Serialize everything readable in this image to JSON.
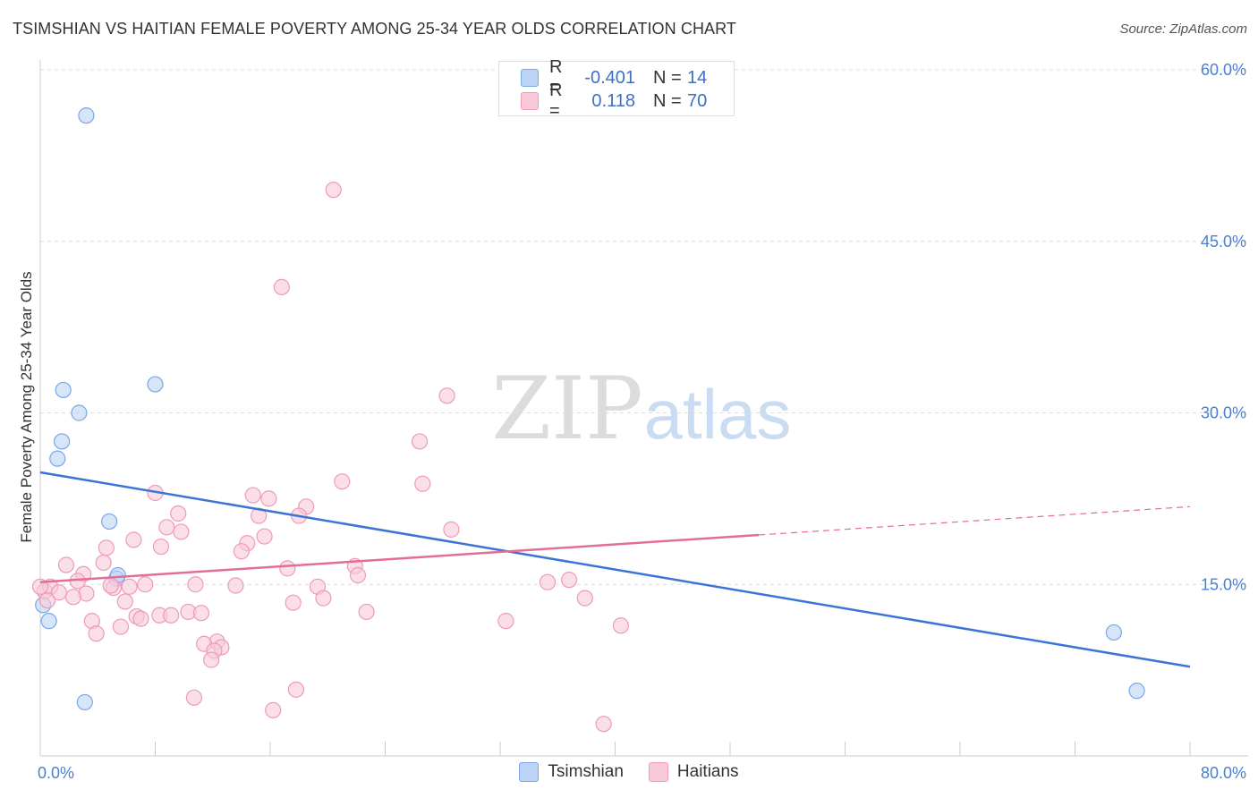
{
  "title": "TSIMSHIAN VS HAITIAN FEMALE POVERTY AMONG 25-34 YEAR OLDS CORRELATION CHART",
  "source": "Source: ZipAtlas.com",
  "watermark": {
    "zip": "ZIP",
    "atlas": "atlas"
  },
  "legend": {
    "rows": [
      {
        "r_label": "R =",
        "r_value": "-0.401",
        "n_label": "N =",
        "n_value": "14",
        "color": "#7aa6e8",
        "fill": "#bcd3f5"
      },
      {
        "r_label": "R =",
        "r_value": "0.118",
        "n_label": "N =",
        "n_value": "70",
        "color": "#ee9ab8",
        "fill": "#f9c9d9"
      }
    ]
  },
  "bottom_legend": [
    {
      "label": "Tsimshian",
      "color": "#7aa6e8",
      "fill": "#bcd3f5"
    },
    {
      "label": "Haitians",
      "color": "#ee9ab8",
      "fill": "#f9c9d9"
    }
  ],
  "chart_data": {
    "type": "scatter",
    "ylabel": "Female Poverty Among 25-34 Year Olds",
    "xlim": [
      0,
      80
    ],
    "ylim": [
      0,
      60
    ],
    "x_tick_labels": [
      {
        "value": 0,
        "label": "0.0%"
      },
      {
        "value": 80,
        "label": "80.0%"
      }
    ],
    "y_tick_labels": [
      {
        "value": 15,
        "label": "15.0%"
      },
      {
        "value": 30,
        "label": "30.0%"
      },
      {
        "value": 45,
        "label": "45.0%"
      },
      {
        "value": 60,
        "label": "60.0%"
      }
    ],
    "grid": true,
    "series": [
      {
        "name": "Tsimshian",
        "color": "#3a74d6",
        "marker_fill": "#bcd3f5",
        "marker_stroke": "#7aa6e8",
        "points": [
          [
            3.2,
            56.0
          ],
          [
            1.6,
            32.0
          ],
          [
            2.7,
            30.0
          ],
          [
            8.0,
            32.5
          ],
          [
            1.5,
            27.5
          ],
          [
            1.2,
            26.0
          ],
          [
            4.8,
            20.5
          ],
          [
            5.3,
            15.5
          ],
          [
            5.4,
            15.8
          ],
          [
            0.6,
            11.8
          ],
          [
            0.2,
            13.2
          ],
          [
            3.1,
            4.7
          ],
          [
            74.7,
            10.8
          ],
          [
            76.3,
            5.7
          ]
        ],
        "trend": {
          "x": [
            0,
            80
          ],
          "y": [
            24.8,
            7.8
          ],
          "dashed_from": null
        }
      },
      {
        "name": "Haitians",
        "color": "#e46d95",
        "marker_fill": "#f9c9d9",
        "marker_stroke": "#ee9ab8",
        "points": [
          [
            20.4,
            49.5
          ],
          [
            16.8,
            41.0
          ],
          [
            28.3,
            31.5
          ],
          [
            26.4,
            27.5
          ],
          [
            21.0,
            24.0
          ],
          [
            26.6,
            23.8
          ],
          [
            8.0,
            23.0
          ],
          [
            14.8,
            22.8
          ],
          [
            15.9,
            22.5
          ],
          [
            18.5,
            21.8
          ],
          [
            9.6,
            21.2
          ],
          [
            18.0,
            21.0
          ],
          [
            15.2,
            21.0
          ],
          [
            8.8,
            20.0
          ],
          [
            28.6,
            19.8
          ],
          [
            9.8,
            19.6
          ],
          [
            15.6,
            19.2
          ],
          [
            6.5,
            18.9
          ],
          [
            14.4,
            18.6
          ],
          [
            8.4,
            18.3
          ],
          [
            4.6,
            18.2
          ],
          [
            14.0,
            17.9
          ],
          [
            4.4,
            16.9
          ],
          [
            1.8,
            16.7
          ],
          [
            21.9,
            16.6
          ],
          [
            17.2,
            16.4
          ],
          [
            22.1,
            15.8
          ],
          [
            3.0,
            15.9
          ],
          [
            2.6,
            15.3
          ],
          [
            36.8,
            15.4
          ],
          [
            35.3,
            15.2
          ],
          [
            10.8,
            15.0
          ],
          [
            13.6,
            14.9
          ],
          [
            6.2,
            14.8
          ],
          [
            5.1,
            14.7
          ],
          [
            4.9,
            14.9
          ],
          [
            7.3,
            15.0
          ],
          [
            19.3,
            14.8
          ],
          [
            0.3,
            14.4
          ],
          [
            0.7,
            14.8
          ],
          [
            1.3,
            14.3
          ],
          [
            3.2,
            14.2
          ],
          [
            2.3,
            13.9
          ],
          [
            0.5,
            13.6
          ],
          [
            19.7,
            13.8
          ],
          [
            37.9,
            13.8
          ],
          [
            17.6,
            13.4
          ],
          [
            5.9,
            13.5
          ],
          [
            22.7,
            12.6
          ],
          [
            10.3,
            12.6
          ],
          [
            11.2,
            12.5
          ],
          [
            8.3,
            12.3
          ],
          [
            6.7,
            12.2
          ],
          [
            9.1,
            12.3
          ],
          [
            7.0,
            12.0
          ],
          [
            3.6,
            11.8
          ],
          [
            32.4,
            11.8
          ],
          [
            40.4,
            11.4
          ],
          [
            5.6,
            11.3
          ],
          [
            3.9,
            10.7
          ],
          [
            12.3,
            10.0
          ],
          [
            11.4,
            9.8
          ],
          [
            12.6,
            9.5
          ],
          [
            12.1,
            9.2
          ],
          [
            11.9,
            8.4
          ],
          [
            10.7,
            5.1
          ],
          [
            17.8,
            5.8
          ],
          [
            16.2,
            4.0
          ],
          [
            39.2,
            2.8
          ],
          [
            0.0,
            14.8
          ]
        ],
        "trend": {
          "x": [
            0,
            80
          ],
          "y": [
            15.2,
            21.8
          ],
          "solid_until": 50
        }
      }
    ]
  }
}
